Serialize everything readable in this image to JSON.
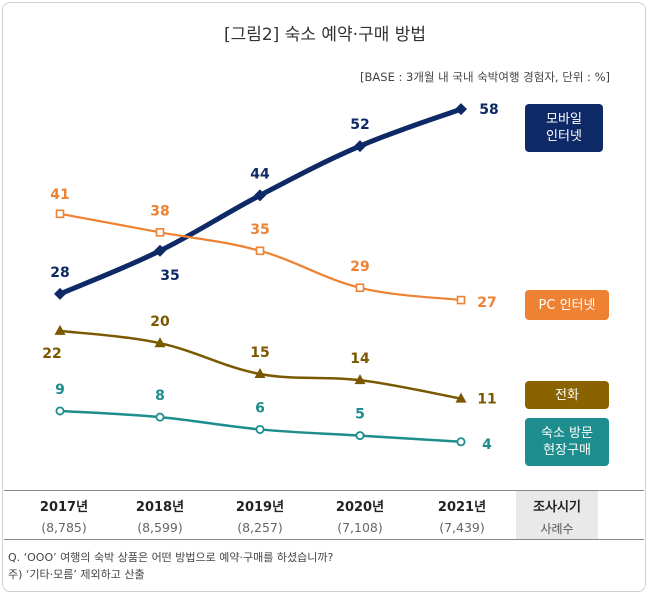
{
  "title": "[그림2] 숙소 예약·구매 방법",
  "base_note": "[BASE : 3개월 내 국내 숙박여행 경험자, 단위 : %]",
  "chart_data": {
    "type": "line",
    "categories": [
      "2017년",
      "2018년",
      "2019년",
      "2020년",
      "2021년"
    ],
    "ylim": [
      0,
      65
    ],
    "series": [
      {
        "key": "mobile",
        "name": "모바일 인터넷",
        "name_lines": [
          "모바일",
          "인터넷"
        ],
        "values": [
          28,
          35,
          44,
          52,
          58
        ],
        "color": "#0e2a66",
        "marker": "diamond"
      },
      {
        "key": "pc",
        "name": "PC 인터넷",
        "name_lines": [
          "PC 인터넷"
        ],
        "values": [
          41,
          38,
          35,
          29,
          27
        ],
        "color": "#ee8232",
        "marker": "square"
      },
      {
        "key": "phone",
        "name": "전화",
        "name_lines": [
          "전화"
        ],
        "values": [
          22,
          20,
          15,
          14,
          11
        ],
        "color": "#7a5800",
        "marker": "triangle"
      },
      {
        "key": "onsite",
        "name": "숙소 방문 현장구매",
        "name_lines": [
          "숙소 방문",
          "현장구매"
        ],
        "values": [
          9,
          8,
          6,
          5,
          4
        ],
        "color": "#1d8d8d",
        "marker": "circle"
      }
    ]
  },
  "table": {
    "years": [
      "2017년",
      "2018년",
      "2019년",
      "2020년",
      "2021년"
    ],
    "samples": [
      "(8,785)",
      "(8,599)",
      "(8,257)",
      "(7,108)",
      "(7,439)"
    ],
    "survey_label": "조사시기",
    "sample_label": "사례수"
  },
  "notes": {
    "question": "Q. ‘OOO’ 여행의 숙박 상품은 어떤 방법으로 예약·구매를 하셨습니까?",
    "footnote": "주) ‘기타·모름’ 제외하고 산출"
  }
}
